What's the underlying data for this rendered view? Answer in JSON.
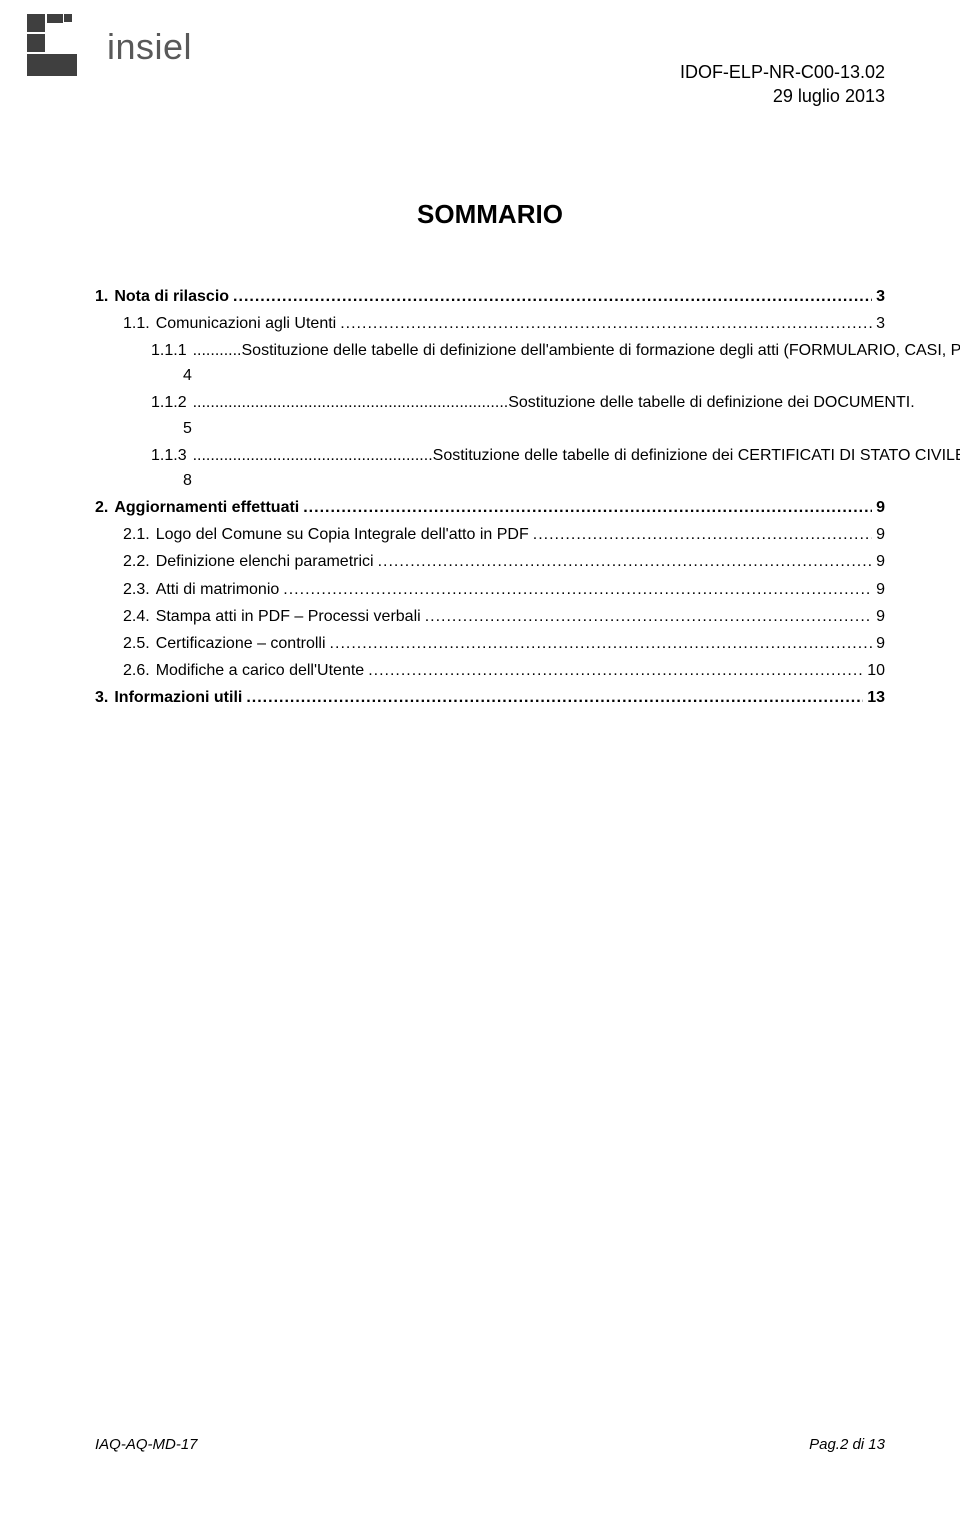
{
  "header": {
    "doc_code": "IDOF-ELP-NR-C00-13.02",
    "date": "29 luglio 2013",
    "logo_text": "insiel"
  },
  "title": "SOMMARIO",
  "toc": [
    {
      "level": 0,
      "num": "1.",
      "label": "Nota di rilascio",
      "page": "3",
      "bold": true
    },
    {
      "level": 1,
      "num": "1.1.",
      "label": "Comunicazioni agli Utenti",
      "page": "3",
      "bold": false
    },
    {
      "level": 2,
      "num": "1.1.1",
      "lead_dots": "...........",
      "label": "Sostituzione delle tabelle di definizione dell'ambiente di formazione degli atti (FORMULARIO, CASI, PREFINCATI)",
      "wrap": "4",
      "bold": false
    },
    {
      "level": 2,
      "num": "1.1.2",
      "lead_dots": ".......................................................................",
      "label": "Sostituzione delle tabelle di definizione dei DOCUMENTI.",
      "wrap": "5",
      "bold": false
    },
    {
      "level": 2,
      "num": "1.1.3",
      "lead_dots": "......................................................",
      "label": "Sostituzione delle tabelle di definizione dei CERTIFICATI DI STATO CIVILE",
      "wrap": "8",
      "bold": false
    },
    {
      "level": 0,
      "num": "2.",
      "label": "Aggiornamenti  effettuati",
      "page": "9",
      "bold": true
    },
    {
      "level": 1,
      "num": "2.1.",
      "label": "Logo del Comune su Copia Integrale dell'atto in PDF",
      "page": "9",
      "bold": false
    },
    {
      "level": 1,
      "num": "2.2.",
      "label": "Definizione elenchi parametrici",
      "page": "9",
      "bold": false
    },
    {
      "level": 1,
      "num": "2.3.",
      "label": "Atti di matrimonio",
      "page": "9",
      "bold": false
    },
    {
      "level": 1,
      "num": "2.4.",
      "label": "Stampa atti in PDF – Processi verbali",
      "page": "9",
      "bold": false
    },
    {
      "level": 1,
      "num": "2.5.",
      "label": "Certificazione – controlli",
      "page": "9",
      "bold": false
    },
    {
      "level": 1,
      "num": "2.6.",
      "label": "Modifiche a carico dell'Utente",
      "page": "10",
      "bold": false
    },
    {
      "level": 0,
      "num": "3.",
      "label": "Informazioni utili",
      "page": "13",
      "bold": true
    }
  ],
  "footer": {
    "left": "IAQ-AQ-MD-17",
    "right": "Pag.2 di 13"
  },
  "colors": {
    "logo_dark": "#3f3f3f",
    "logo_text": "#595959",
    "text": "#000000",
    "background": "#ffffff"
  }
}
